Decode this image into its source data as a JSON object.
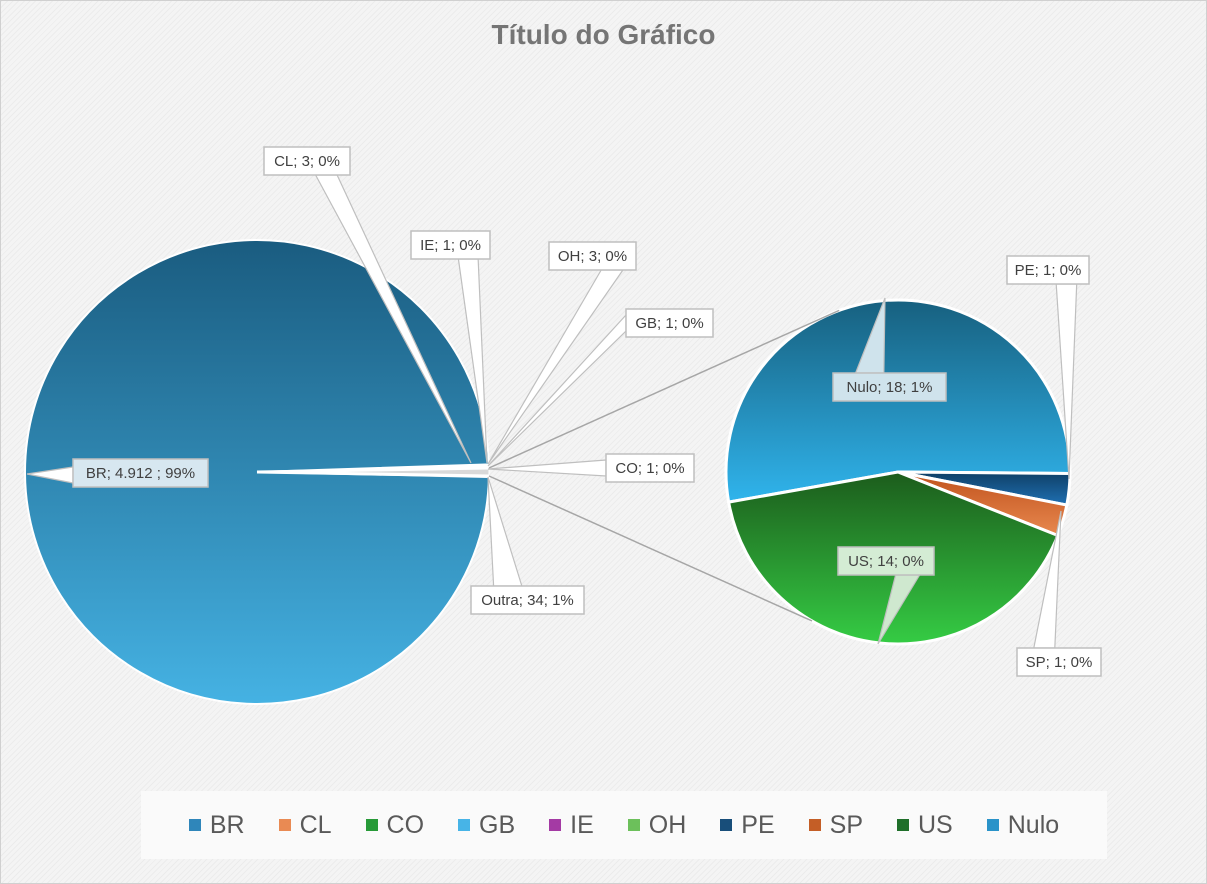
{
  "chart_data": {
    "type": "pie",
    "subtype": "bar-of-pie / pie-of-pie",
    "title": "Título do Gráfico",
    "primary_pie": {
      "slices": [
        {
          "category": "BR",
          "label": "BR;  4.912 ; 99%",
          "value": 4912,
          "percent_label": "99%",
          "color": "#2e87bb"
        },
        {
          "category": "CL",
          "label": "CL; 3; 0%",
          "value": 3,
          "percent_label": "0%",
          "color": "#e2864a"
        },
        {
          "category": "IE",
          "label": "IE; 1; 0%",
          "value": 1,
          "percent_label": "0%",
          "color": "#a43aa4"
        },
        {
          "category": "OH",
          "label": "OH; 3; 0%",
          "value": 3,
          "percent_label": "0%",
          "color": "#6ab24f"
        },
        {
          "category": "GB",
          "label": "GB; 1; 0%",
          "value": 1,
          "percent_label": "0%",
          "color": "#4bb5e6"
        },
        {
          "category": "CO",
          "label": "CO; 1; 0%",
          "value": 1,
          "percent_label": "0%",
          "color": "#2f9a3c"
        },
        {
          "category": "Outra",
          "label": "Outra; 34; 1%",
          "value": 34,
          "percent_label": "1%",
          "color": "#d9d9d9",
          "is_other": true
        }
      ]
    },
    "secondary_pie": {
      "slices": [
        {
          "category": "Nulo",
          "label": "Nulo; 18; 1%",
          "value": 18,
          "percent_label": "1%",
          "color_top": "#17607f",
          "color_bottom": "#30b4ec"
        },
        {
          "category": "PE",
          "label": "PE; 1; 0%",
          "value": 1,
          "percent_label": "0%",
          "color_top": "#0f3f66",
          "color_bottom": "#1f70b3"
        },
        {
          "category": "SP",
          "label": "SP; 1; 0%",
          "value": 1,
          "percent_label": "0%",
          "color_top": "#c0521c",
          "color_bottom": "#e8884f"
        },
        {
          "category": "US",
          "label": "US; 14; 0%",
          "value": 14,
          "percent_label": "0%",
          "color_top": "#1c5c1c",
          "color_bottom": "#35cc44"
        }
      ]
    },
    "legend": {
      "position": "bottom",
      "entries": [
        {
          "name": "BR",
          "color": "#2f86ba"
        },
        {
          "name": "CL",
          "color": "#e98a53"
        },
        {
          "name": "CO",
          "color": "#279a38"
        },
        {
          "name": "GB",
          "color": "#47b4e7"
        },
        {
          "name": "IE",
          "color": "#a43aa4"
        },
        {
          "name": "OH",
          "color": "#6cc05b"
        },
        {
          "name": "PE",
          "color": "#184e7a"
        },
        {
          "name": "SP",
          "color": "#c45e26"
        },
        {
          "name": "US",
          "color": "#1f6f2a"
        },
        {
          "name": "Nulo",
          "color": "#2a93c9"
        }
      ]
    }
  }
}
